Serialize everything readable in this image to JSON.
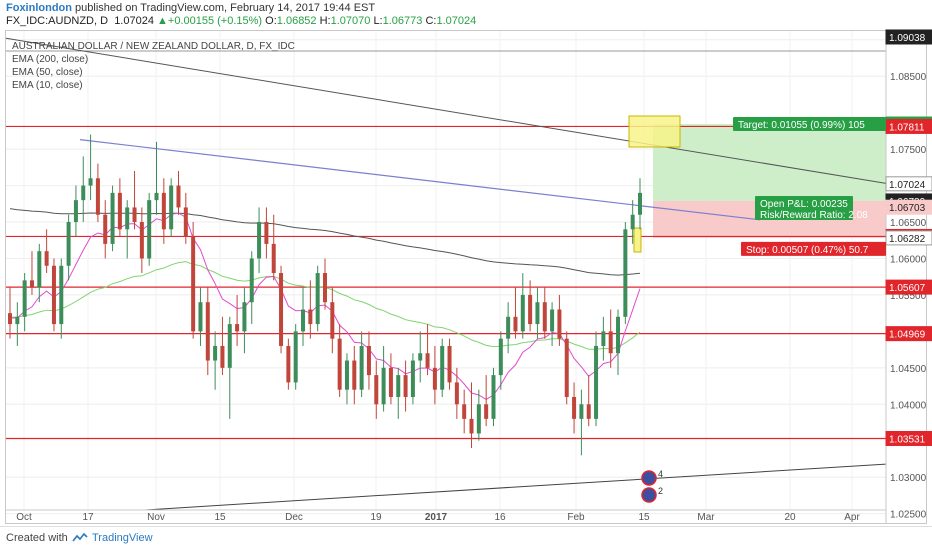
{
  "header": {
    "author": "Foxinlondon",
    "published": "published on TradingView.com, February 14, 2017 19:44 EST",
    "symbol_line": "FX_IDC:AUDNZD, D",
    "last": "1.07024",
    "change": "+0.00155 (+0.15%)",
    "o_label": "O:",
    "o": "1.06852",
    "h_label": "H:",
    "h": "1.07070",
    "l_label": "L:",
    "l": "1.06773",
    "c_label": "C:",
    "c": "1.07024"
  },
  "legend": {
    "title": "AUSTRALIAN DOLLAR / NEW ZEALAND DOLLAR, D, FX_IDC",
    "ema200": "EMA (200, close)",
    "ema50": "EMA (50, close)",
    "ema10": "EMA (10, close)"
  },
  "footer": {
    "created": "Created with",
    "brand": "TradingView"
  },
  "colors": {
    "up": "#3c8d5a",
    "down": "#c0453a",
    "level": "#e0252b",
    "ema200": "#555555",
    "ema50": "#7ed66e",
    "ema10": "#e24bd0",
    "trend": "#7b7fd0",
    "target_bg": "#cdeec9",
    "stop_bg": "#f8caca",
    "target_tag": "#27a045",
    "stop_tag": "#e0252b"
  },
  "chart_data": {
    "type": "candlestick",
    "ylim": [
      1.0255,
      1.0912
    ],
    "y_ticks": [
      "1.09000",
      "1.08500",
      "1.07500",
      "1.07000",
      "1.06500",
      "1.06000",
      "1.05500",
      "1.04500",
      "1.04000",
      "1.03000",
      "1.02500"
    ],
    "x_ticks": [
      "Oct",
      "17",
      "Nov",
      "15",
      "Dec",
      "19",
      "2017",
      "16",
      "Feb",
      "15",
      "Mar",
      "20",
      "Apr"
    ],
    "price_tags": [
      {
        "value": "1.09038",
        "color": "#222222"
      },
      {
        "value": "1.07844",
        "color": "#27a045"
      },
      {
        "value": "1.07811",
        "color": "#e0252b"
      },
      {
        "value": "1.07024",
        "color": "#ffffff"
      },
      {
        "value": "1.06789",
        "color": "#222222"
      },
      {
        "value": "1.06703",
        "color": "#f8caca"
      },
      {
        "value": "1.06302",
        "color": "#e0252b"
      },
      {
        "value": "1.06282",
        "color": "#ffffff"
      },
      {
        "value": "1.05607",
        "color": "#e0252b"
      },
      {
        "value": "1.04969",
        "color": "#e0252b"
      },
      {
        "value": "1.03531",
        "color": "#e0252b"
      }
    ],
    "levels": [
      1.07811,
      1.06302,
      1.05607,
      1.04969,
      1.03531
    ],
    "position": {
      "entry": 1.06789,
      "target": 1.07844,
      "stop": 1.06282,
      "target_text": "Target: 0.01055 (0.99%) 105",
      "pnl_text": "Open P&L: 0.00235",
      "rr_text": "Risk/Reward Ratio: 2.08",
      "stop_text": "Stop: 0.00507 (0.47%) 50.7"
    },
    "events": [
      "4",
      "2"
    ],
    "candles": [
      [
        1.0525,
        1.056,
        1.049,
        1.051
      ],
      [
        1.051,
        1.054,
        1.048,
        1.052
      ],
      [
        1.052,
        1.058,
        1.05,
        1.057
      ],
      [
        1.057,
        1.061,
        1.055,
        1.056
      ],
      [
        1.056,
        1.062,
        1.054,
        1.061
      ],
      [
        1.061,
        1.064,
        1.058,
        1.059
      ],
      [
        1.059,
        1.06,
        1.05,
        1.051
      ],
      [
        1.051,
        1.06,
        1.049,
        1.059
      ],
      [
        1.059,
        1.066,
        1.057,
        1.065
      ],
      [
        1.065,
        1.07,
        1.063,
        1.068
      ],
      [
        1.068,
        1.074,
        1.065,
        1.07
      ],
      [
        1.07,
        1.077,
        1.068,
        1.071
      ],
      [
        1.071,
        1.073,
        1.065,
        1.066
      ],
      [
        1.066,
        1.068,
        1.06,
        1.062
      ],
      [
        1.062,
        1.07,
        1.061,
        1.069
      ],
      [
        1.069,
        1.071,
        1.063,
        1.064
      ],
      [
        1.064,
        1.068,
        1.06,
        1.067
      ],
      [
        1.067,
        1.072,
        1.064,
        1.065
      ],
      [
        1.065,
        1.067,
        1.058,
        1.06
      ],
      [
        1.06,
        1.069,
        1.059,
        1.068
      ],
      [
        1.068,
        1.076,
        1.066,
        1.069
      ],
      [
        1.069,
        1.071,
        1.062,
        1.064
      ],
      [
        1.064,
        1.071,
        1.063,
        1.07
      ],
      [
        1.07,
        1.072,
        1.066,
        1.067
      ],
      [
        1.067,
        1.069,
        1.062,
        1.063
      ],
      [
        1.063,
        1.065,
        1.049,
        1.05
      ],
      [
        1.05,
        1.056,
        1.048,
        1.054
      ],
      [
        1.054,
        1.056,
        1.044,
        1.046
      ],
      [
        1.046,
        1.05,
        1.042,
        1.048
      ],
      [
        1.048,
        1.052,
        1.044,
        1.045
      ],
      [
        1.045,
        1.052,
        1.038,
        1.051
      ],
      [
        1.051,
        1.055,
        1.048,
        1.05
      ],
      [
        1.05,
        1.056,
        1.047,
        1.054
      ],
      [
        1.054,
        1.061,
        1.051,
        1.06
      ],
      [
        1.06,
        1.067,
        1.058,
        1.065
      ],
      [
        1.065,
        1.067,
        1.06,
        1.062
      ],
      [
        1.062,
        1.066,
        1.057,
        1.058
      ],
      [
        1.058,
        1.059,
        1.047,
        1.048
      ],
      [
        1.048,
        1.049,
        1.042,
        1.043
      ],
      [
        1.043,
        1.051,
        1.042,
        1.05
      ],
      [
        1.05,
        1.056,
        1.048,
        1.053
      ],
      [
        1.053,
        1.057,
        1.049,
        1.051
      ],
      [
        1.051,
        1.059,
        1.05,
        1.058
      ],
      [
        1.058,
        1.06,
        1.053,
        1.054
      ],
      [
        1.054,
        1.056,
        1.047,
        1.049
      ],
      [
        1.049,
        1.051,
        1.041,
        1.042
      ],
      [
        1.042,
        1.047,
        1.04,
        1.046
      ],
      [
        1.046,
        1.048,
        1.04,
        1.042
      ],
      [
        1.042,
        1.05,
        1.041,
        1.048
      ],
      [
        1.048,
        1.05,
        1.042,
        1.044
      ],
      [
        1.044,
        1.046,
        1.038,
        1.04
      ],
      [
        1.04,
        1.048,
        1.039,
        1.045
      ],
      [
        1.045,
        1.047,
        1.04,
        1.041
      ],
      [
        1.041,
        1.045,
        1.038,
        1.044
      ],
      [
        1.044,
        1.046,
        1.039,
        1.041
      ],
      [
        1.041,
        1.047,
        1.04,
        1.046
      ],
      [
        1.046,
        1.05,
        1.043,
        1.047
      ],
      [
        1.047,
        1.051,
        1.044,
        1.045
      ],
      [
        1.045,
        1.048,
        1.04,
        1.042
      ],
      [
        1.042,
        1.049,
        1.041,
        1.048
      ],
      [
        1.048,
        1.049,
        1.042,
        1.043
      ],
      [
        1.043,
        1.045,
        1.038,
        1.04
      ],
      [
        1.04,
        1.042,
        1.036,
        1.038
      ],
      [
        1.038,
        1.043,
        1.034,
        1.036
      ],
      [
        1.036,
        1.042,
        1.035,
        1.04
      ],
      [
        1.04,
        1.044,
        1.037,
        1.038
      ],
      [
        1.038,
        1.045,
        1.037,
        1.044
      ],
      [
        1.044,
        1.05,
        1.042,
        1.049
      ],
      [
        1.049,
        1.054,
        1.047,
        1.052
      ],
      [
        1.052,
        1.056,
        1.049,
        1.05
      ],
      [
        1.05,
        1.058,
        1.049,
        1.055
      ],
      [
        1.055,
        1.057,
        1.05,
        1.051
      ],
      [
        1.051,
        1.056,
        1.049,
        1.054
      ],
      [
        1.054,
        1.056,
        1.049,
        1.05
      ],
      [
        1.05,
        1.054,
        1.048,
        1.053
      ],
      [
        1.053,
        1.055,
        1.048,
        1.049
      ],
      [
        1.049,
        1.05,
        1.04,
        1.041
      ],
      [
        1.041,
        1.043,
        1.036,
        1.038
      ],
      [
        1.038,
        1.042,
        1.033,
        1.04
      ],
      [
        1.04,
        1.044,
        1.037,
        1.038
      ],
      [
        1.038,
        1.05,
        1.037,
        1.048
      ],
      [
        1.048,
        1.052,
        1.046,
        1.05
      ],
      [
        1.05,
        1.053,
        1.045,
        1.047
      ],
      [
        1.047,
        1.053,
        1.044,
        1.052
      ],
      [
        1.052,
        1.065,
        1.051,
        1.064
      ],
      [
        1.064,
        1.068,
        1.062,
        1.066
      ],
      [
        1.066,
        1.071,
        1.064,
        1.069
      ]
    ]
  }
}
